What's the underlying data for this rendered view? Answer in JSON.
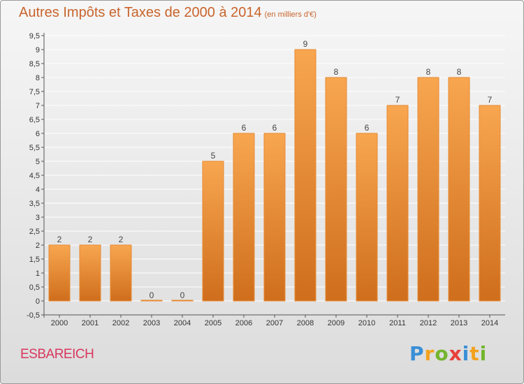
{
  "header": {
    "title": "Autres Impôts et Taxes de 2000 à 2014",
    "unit_note": "(en milliers d'€)"
  },
  "footer": {
    "commune": "ESBAREICH",
    "brand": [
      "P",
      "r",
      "o",
      "x",
      "i",
      "t",
      "i"
    ]
  },
  "colors": {
    "bar_top": "#f8a650",
    "bar_bottom": "#cf6e1c",
    "bar_border": "#e88a32",
    "title": "#c8642c",
    "commune": "#d8385e"
  },
  "chart_data": {
    "type": "bar",
    "title": "Autres Impôts et Taxes de 2000 à 2014",
    "subtitle": "(en milliers d'€)",
    "categories": [
      "2000",
      "2001",
      "2002",
      "2003",
      "2004",
      "2005",
      "2006",
      "2007",
      "2008",
      "2009",
      "2010",
      "2011",
      "2012",
      "2013",
      "2014"
    ],
    "values": [
      2,
      2,
      2,
      0,
      0,
      5,
      6,
      6,
      9,
      8,
      6,
      7,
      8,
      8,
      7
    ],
    "ylim": [
      -0.5,
      9.5
    ],
    "yticks": [
      "-0,5",
      "0",
      "0,5",
      "1",
      "1,5",
      "2",
      "2,5",
      "3",
      "3,5",
      "4",
      "4,5",
      "5",
      "5,5",
      "6",
      "6,5",
      "7",
      "7,5",
      "8",
      "8,5",
      "9",
      "9,5"
    ],
    "grid": true
  }
}
